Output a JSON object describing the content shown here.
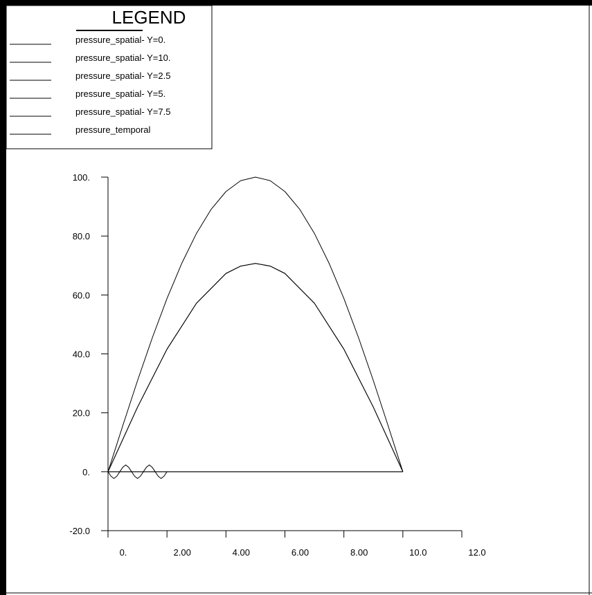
{
  "chart_data": {
    "type": "line",
    "title": "",
    "xlabel": "",
    "ylabel": "",
    "xlim": [
      0,
      12
    ],
    "ylim": [
      -20,
      100
    ],
    "grid": false,
    "legend": {
      "title": "LEGEND",
      "placement": "top-left",
      "entries": [
        "pressure_spatial- Y=0.",
        "pressure_spatial- Y=10.",
        "pressure_spatial- Y=2.5",
        "pressure_spatial- Y=5.",
        "pressure_spatial- Y=7.5",
        "pressure_temporal"
      ]
    },
    "x_ticks": [
      {
        "value": 0,
        "label": "0."
      },
      {
        "value": 2,
        "label": "2.00"
      },
      {
        "value": 4,
        "label": "4.00"
      },
      {
        "value": 6,
        "label": "6.00"
      },
      {
        "value": 8,
        "label": "8.00"
      },
      {
        "value": 10,
        "label": "10.0"
      },
      {
        "value": 12,
        "label": "12.0"
      }
    ],
    "y_ticks": [
      {
        "value": -20,
        "label": "-20.0"
      },
      {
        "value": 0,
        "label": "0."
      },
      {
        "value": 20,
        "label": "20.0"
      },
      {
        "value": 40,
        "label": "40.0"
      },
      {
        "value": 60,
        "label": "60.0"
      },
      {
        "value": 80,
        "label": "80.0"
      },
      {
        "value": 100,
        "label": "100."
      }
    ],
    "series": [
      {
        "name": "pressure_spatial- Y=0.",
        "x": [
          0,
          1,
          2,
          3,
          4,
          5,
          6,
          7,
          8,
          9,
          10
        ],
        "y": [
          0,
          0,
          0,
          0,
          0,
          0,
          0,
          0,
          0,
          0,
          0
        ]
      },
      {
        "name": "pressure_spatial- Y=10.",
        "x": [
          0,
          1,
          2,
          3,
          4,
          5,
          6,
          7,
          8,
          9,
          10
        ],
        "y": [
          0,
          0,
          0,
          0,
          0,
          0,
          0,
          0,
          0,
          0,
          0
        ]
      },
      {
        "name": "pressure_spatial- Y=2.5",
        "x": [
          0,
          1,
          2,
          3,
          4,
          4.5,
          5,
          5.5,
          6,
          7,
          8,
          9,
          10
        ],
        "y": [
          0,
          21.9,
          41.6,
          57.2,
          67.3,
          69.8,
          70.7,
          69.8,
          67.3,
          57.2,
          41.6,
          21.9,
          0
        ]
      },
      {
        "name": "pressure_spatial- Y=5.",
        "x": [
          0,
          0.5,
          1,
          1.5,
          2,
          2.5,
          3,
          3.5,
          4,
          4.5,
          5,
          5.5,
          6,
          6.5,
          7,
          7.5,
          8,
          8.5,
          9,
          9.5,
          10
        ],
        "y": [
          0,
          15.6,
          30.9,
          45.4,
          58.8,
          70.7,
          80.9,
          89.1,
          95.1,
          98.8,
          100,
          98.8,
          95.1,
          89.1,
          80.9,
          70.7,
          58.8,
          45.4,
          30.9,
          15.6,
          0
        ]
      },
      {
        "name": "pressure_spatial- Y=7.5",
        "x": [
          0,
          1,
          2,
          3,
          4,
          4.5,
          5,
          5.5,
          6,
          7,
          8,
          9,
          10
        ],
        "y": [
          0,
          21.9,
          41.6,
          57.2,
          67.3,
          69.8,
          70.7,
          69.8,
          67.3,
          57.2,
          41.6,
          21.9,
          0
        ]
      },
      {
        "name": "pressure_temporal",
        "x": [
          0,
          0.1,
          0.2,
          0.3,
          0.4,
          0.5,
          0.6,
          0.7,
          0.8,
          0.9,
          1.0,
          1.1,
          1.2,
          1.3,
          1.4,
          1.5,
          1.6,
          1.7,
          1.8,
          1.9,
          2.0
        ],
        "y": [
          0,
          -1.5,
          -2.3,
          -1.5,
          0,
          1.5,
          2.3,
          1.5,
          0,
          -1.5,
          -2.3,
          -1.5,
          0,
          1.5,
          2.3,
          1.5,
          0,
          -1.5,
          -2.3,
          -1.5,
          0
        ]
      }
    ]
  }
}
